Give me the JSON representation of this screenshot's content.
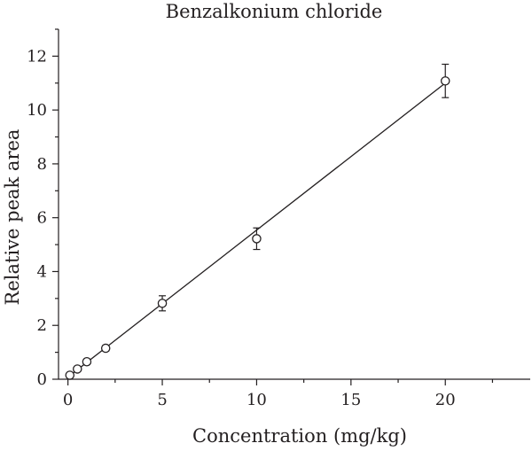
{
  "chart_data": {
    "type": "scatter",
    "title": "Benzalkonium chloride",
    "xlabel": "Concentration (mg/kg)",
    "ylabel": "Relative peak area",
    "xlim": [
      -0.5,
      24.5
    ],
    "ylim": [
      0,
      13
    ],
    "xticks": [
      0,
      5,
      10,
      15,
      20
    ],
    "yticks": [
      0,
      2,
      4,
      6,
      8,
      10,
      12
    ],
    "grid": false,
    "series": [
      {
        "marker": "open-circle",
        "x": [
          0.1,
          0.5,
          1,
          2,
          5,
          10,
          20
        ],
        "y": [
          0.15,
          0.38,
          0.65,
          1.15,
          2.82,
          5.22,
          11.08
        ],
        "error": [
          0.04,
          0.05,
          0.06,
          0.1,
          0.28,
          0.4,
          0.62
        ]
      }
    ],
    "fit_line": {
      "x": [
        0,
        20
      ],
      "y": [
        0.08,
        11.0
      ]
    }
  }
}
